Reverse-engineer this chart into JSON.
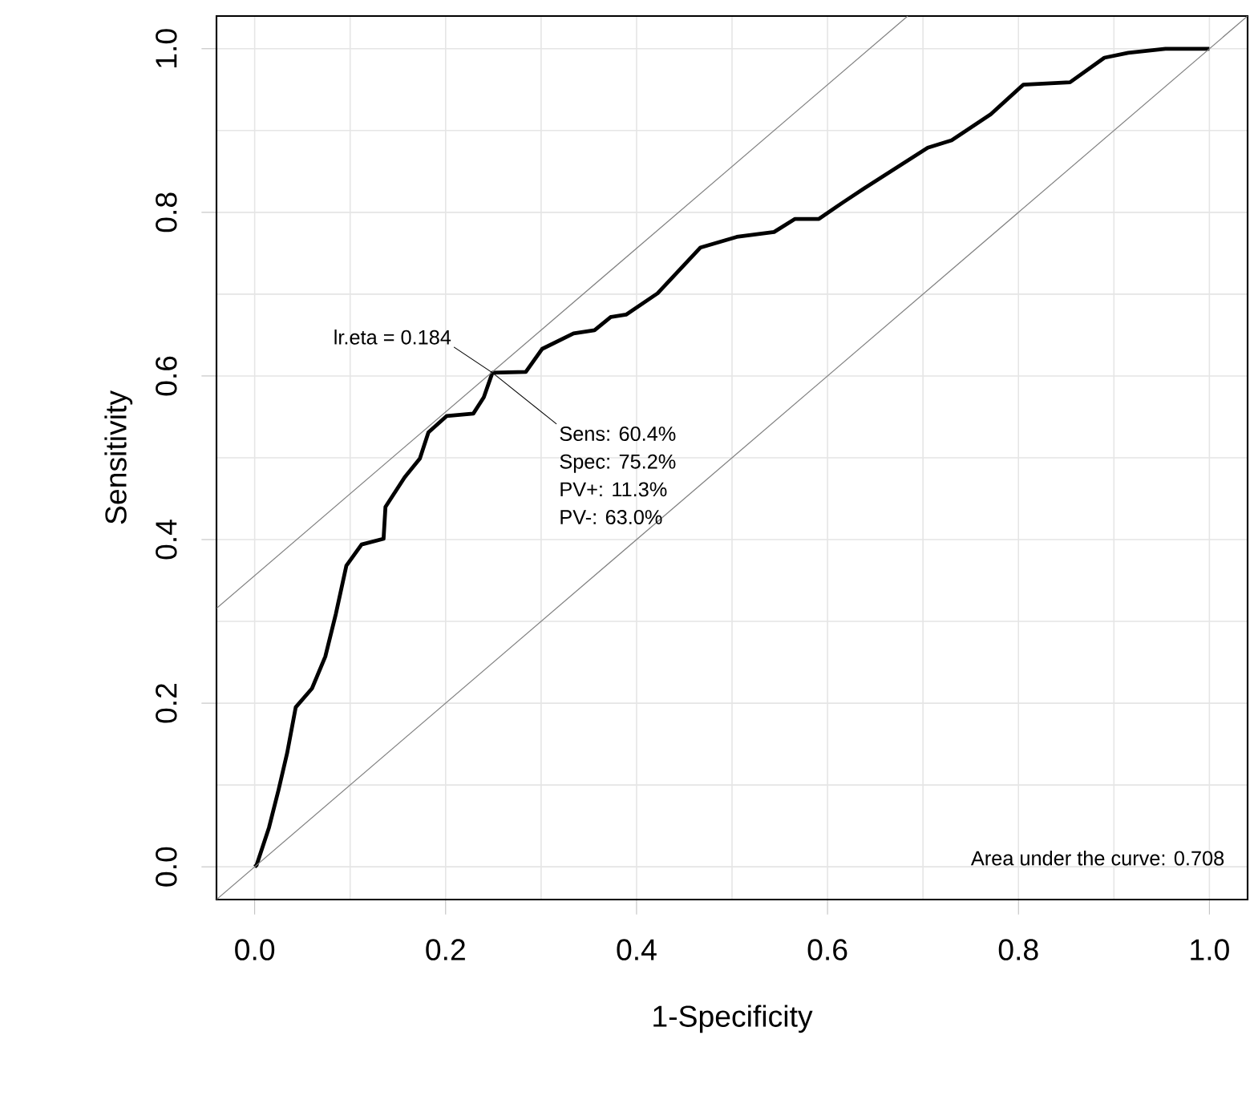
{
  "chart_data": {
    "type": "line",
    "xlabel": "1-Specificity",
    "ylabel": "Sensitivity",
    "xlim": [
      -0.04,
      1.04
    ],
    "ylim": [
      -0.04,
      1.04
    ],
    "xticks": [
      {
        "value": 0,
        "label": "0.0"
      },
      {
        "value": 0.2,
        "label": "0.2"
      },
      {
        "value": 0.4,
        "label": "0.4"
      },
      {
        "value": 0.6,
        "label": "0.6"
      },
      {
        "value": 0.8,
        "label": "0.8"
      },
      {
        "value": 1,
        "label": "1.0"
      }
    ],
    "yticks": [
      {
        "value": 0,
        "label": "0.0"
      },
      {
        "value": 0.2,
        "label": "0.2"
      },
      {
        "value": 0.4,
        "label": "0.4"
      },
      {
        "value": 0.6,
        "label": "0.6"
      },
      {
        "value": 0.8,
        "label": "0.8"
      },
      {
        "value": 1,
        "label": "1.0"
      }
    ],
    "grid": true,
    "series": [
      {
        "color": "#000000",
        "x": [
          0,
          0.002,
          0.015,
          0.025,
          0.034,
          0.043,
          0.06,
          0.074,
          0.085,
          0.096,
          0.112,
          0.135,
          0.137,
          0.157,
          0.173,
          0.182,
          0.201,
          0.229,
          0.24,
          0.249,
          0.284,
          0.301,
          0.334,
          0.356,
          0.373,
          0.389,
          0.422,
          0.467,
          0.505,
          0.544,
          0.566,
          0.591,
          0.616,
          0.638,
          0.705,
          0.73,
          0.771,
          0.805,
          0.854,
          0.89,
          0.915,
          0.954,
          0.993,
          1
        ],
        "values": [
          0,
          0.002,
          0.048,
          0.094,
          0.139,
          0.195,
          0.218,
          0.257,
          0.309,
          0.368,
          0.394,
          0.401,
          0.44,
          0.476,
          0.499,
          0.531,
          0.551,
          0.554,
          0.574,
          0.604,
          0.605,
          0.633,
          0.652,
          0.656,
          0.672,
          0.675,
          0.701,
          0.757,
          0.77,
          0.776,
          0.792,
          0.792,
          0.812,
          0.829,
          0.879,
          0.888,
          0.92,
          0.956,
          0.959,
          0.989,
          0.995,
          1,
          1,
          1
        ]
      },
      {
        "color": "#808080",
        "x": [
          -0.04,
          0.684
        ],
        "values": [
          0.316,
          1.04
        ]
      },
      {
        "color": "#808080",
        "x": [
          -0.04,
          1.04
        ],
        "values": [
          -0.04,
          1.04
        ]
      }
    ],
    "annotations": [
      {
        "text": "lr.eta = 0.184",
        "x": 0.249,
        "y": 0.604
      },
      {
        "text": "Sens: 60.4%",
        "x": 0.249,
        "y": 0.604
      },
      "Spec: 75.2%",
      "PV+: 11.3%",
      "PV-: 63.0%",
      "Area under the curve: 0.708"
    ]
  }
}
